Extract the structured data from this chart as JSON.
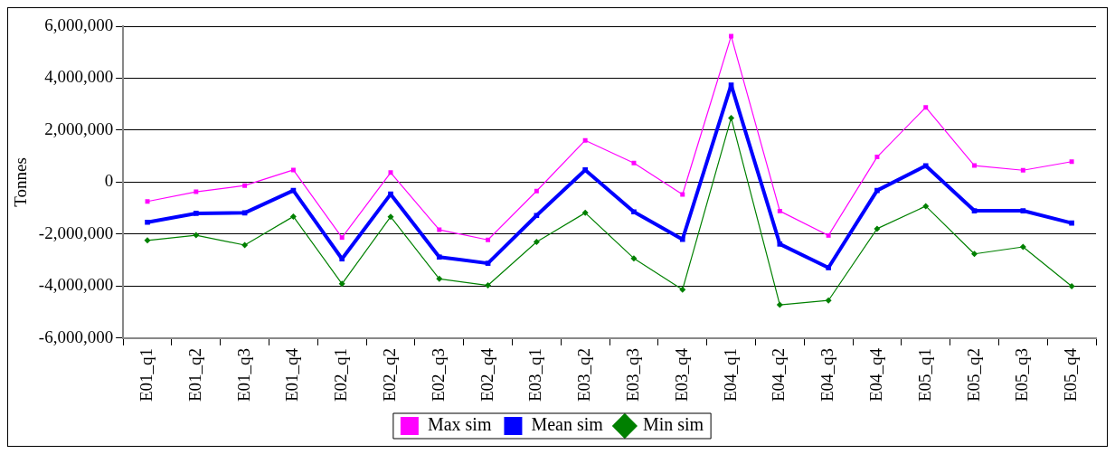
{
  "chart_data": {
    "type": "line",
    "ylabel": "Tonnes",
    "categories": [
      "E01_q1",
      "E01_q2",
      "E01_q3",
      "E01_q4",
      "E02_q1",
      "E02_q2",
      "E02_q3",
      "E02_q4",
      "E03_q1",
      "E03_q2",
      "E03_q3",
      "E03_q4",
      "E04_q1",
      "E04_q2",
      "E04_q3",
      "E04_q4",
      "E05_q1",
      "E05_q2",
      "E05_q3",
      "E05_q4"
    ],
    "series": [
      {
        "name": "Max sim",
        "color": "#ff00ff",
        "marker": "square",
        "values": [
          -740000,
          -370000,
          -130000,
          470000,
          -2130000,
          370000,
          -1830000,
          -2220000,
          -340000,
          1610000,
          740000,
          -470000,
          5620000,
          -1110000,
          -2050000,
          970000,
          2880000,
          640000,
          460000,
          790000
        ]
      },
      {
        "name": "Mean sim",
        "color": "#0000ff",
        "marker": "square",
        "values": [
          -1540000,
          -1200000,
          -1180000,
          -320000,
          -2950000,
          -460000,
          -2880000,
          -3120000,
          -1280000,
          470000,
          -1140000,
          -2200000,
          3740000,
          -2380000,
          -3290000,
          -320000,
          630000,
          -1100000,
          -1100000,
          -1570000
        ]
      },
      {
        "name": "Min sim",
        "color": "#008000",
        "marker": "diamond",
        "values": [
          -2240000,
          -2040000,
          -2420000,
          -1320000,
          -3910000,
          -1330000,
          -3720000,
          -3970000,
          -2300000,
          -1180000,
          -2930000,
          -4130000,
          2470000,
          -4720000,
          -4550000,
          -1790000,
          -920000,
          -2760000,
          -2490000,
          -4000000
        ]
      }
    ],
    "ylim": [
      -6000000,
      6000000
    ],
    "yticks": [
      {
        "value": -6000000,
        "label": "-6,000,000"
      },
      {
        "value": -4000000,
        "label": "-4,000,000"
      },
      {
        "value": -2000000,
        "label": "-2,000,000"
      },
      0,
      {
        "value": 2000000,
        "label": "2,000,000"
      },
      {
        "value": 4000000,
        "label": "4,000,000"
      },
      {
        "value": 6000000,
        "label": "6,000,000"
      }
    ],
    "grid": "y",
    "legend": "bottom",
    "line_style": "solid"
  }
}
